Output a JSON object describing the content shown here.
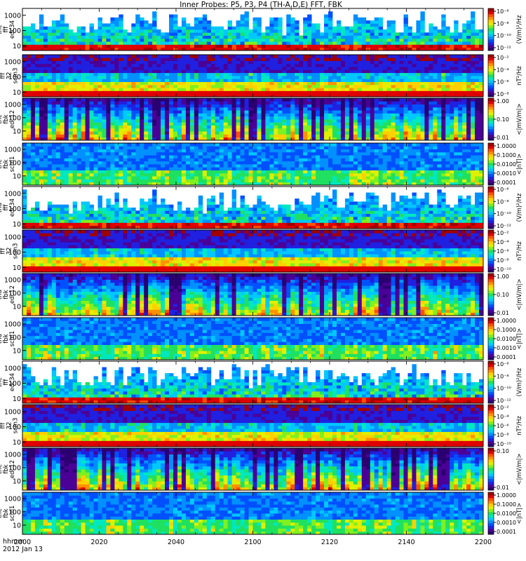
{
  "title": "Inner Probes: P5, P3, P4 (TH-A,D,E) FFT, FBK",
  "bottom": {
    "label_line1": "hhmm",
    "label_line2": "2012 Jan 13"
  },
  "colorbar_colors": [
    "#2a0070",
    "#4b0096",
    "#2020e0",
    "#0050ff",
    "#0090ff",
    "#00c8ff",
    "#00e8c0",
    "#20e060",
    "#80f020",
    "#e0f000",
    "#ffd000",
    "#ff9000",
    "#ff5000",
    "#e00000",
    "#a00000"
  ],
  "chart_data": {
    "type": "heatmap",
    "x": {
      "label": "hhmm",
      "date": "2012 Jan 13",
      "ticks": [
        "2000",
        "2020",
        "2040",
        "2100",
        "2120",
        "2140",
        "2200"
      ],
      "range_minutes": [
        0,
        120
      ]
    },
    "panels": [
      {
        "probe": "thc",
        "label": [
          "thc",
          "fff",
          "edc34"
        ],
        "yticks": [
          "10",
          "100",
          "1000"
        ],
        "unit": "(V/m)²/Hz",
        "cticks": [
          "10⁻¹²",
          "10⁻¹⁰",
          "10⁻⁸",
          "10⁻⁶"
        ],
        "kind": "E-FFT",
        "ylog": [
          5,
          2800
        ],
        "clog": [
          -12,
          -5
        ]
      },
      {
        "probe": "thc",
        "label": [
          "thc",
          "fff",
          "32",
          "scm3"
        ],
        "yticks": [
          "10",
          "100",
          "1000"
        ],
        "unit": "nT²/Hz",
        "cticks": [
          "10⁻⁸",
          "10⁻⁶",
          "10⁻⁴",
          "10⁻²"
        ],
        "kind": "B-FFT",
        "ylog": [
          5,
          2800
        ],
        "clog": [
          -9,
          -2
        ]
      },
      {
        "probe": "thc",
        "label": [
          "thc",
          "fbk",
          "edc12"
        ],
        "yticks": [
          "10",
          "100",
          "1000"
        ],
        "unit": "<|mV/m|>",
        "cticks": [
          "0.01",
          "0.10",
          "1.00"
        ],
        "kind": "E-FBK",
        "ylog": [
          2,
          3000
        ],
        "clog": [
          -2.5,
          0.2
        ]
      },
      {
        "probe": "thc",
        "label": [
          "thc",
          "fbk",
          "scm1"
        ],
        "yticks": [
          "10",
          "100",
          "1000"
        ],
        "unit": "<|nT|>",
        "cticks": [
          "0.0001",
          "0.0010",
          "0.0100",
          "0.1000",
          "1.0000"
        ],
        "kind": "B-FBK",
        "ylog": [
          2,
          3000
        ],
        "clog": [
          -4,
          0.3
        ]
      },
      {
        "probe": "thd",
        "label": [
          "thd",
          "fff",
          "edc34"
        ],
        "yticks": [
          "10",
          "100",
          "1000"
        ],
        "unit": "(V/m)²/Hz",
        "cticks": [
          "10⁻¹²",
          "10⁻¹⁰",
          "10⁻⁸",
          "10⁻⁶"
        ],
        "kind": "E-FFT",
        "ylog": [
          5,
          2800
        ],
        "clog": [
          -12,
          -5
        ]
      },
      {
        "probe": "thd",
        "label": [
          "thd",
          "fff",
          "32",
          "scm3"
        ],
        "yticks": [
          "10",
          "100",
          "1000"
        ],
        "unit": "nT²/Hz",
        "cticks": [
          "10⁻¹⁰",
          "10⁻⁸",
          "10⁻⁶",
          "10⁻⁴",
          "10⁻²"
        ],
        "kind": "B-FFT",
        "ylog": [
          5,
          2800
        ],
        "clog": [
          -10,
          -2
        ]
      },
      {
        "probe": "thd",
        "label": [
          "thd",
          "fbk",
          "edc12"
        ],
        "yticks": [
          "10",
          "100",
          "1000"
        ],
        "unit": "<|mV/m|>",
        "cticks": [
          "0.01",
          "0.10",
          "1.00"
        ],
        "kind": "E-FBK",
        "ylog": [
          2,
          3000
        ],
        "clog": [
          -2.5,
          0.2
        ]
      },
      {
        "probe": "thd",
        "label": [
          "thd",
          "fbk",
          "scm1"
        ],
        "yticks": [
          "10",
          "100",
          "1000"
        ],
        "unit": "<|nT|>",
        "cticks": [
          "0.0001",
          "0.0010",
          "0.0100",
          "0.1000",
          "1.0000"
        ],
        "kind": "B-FBK",
        "ylog": [
          2,
          3000
        ],
        "clog": [
          -4,
          0.3
        ]
      },
      {
        "probe": "the",
        "label": [
          "the",
          "fff",
          "edc34"
        ],
        "yticks": [
          "10",
          "100",
          "1000"
        ],
        "unit": "(V/m)²/Hz",
        "cticks": [
          "10⁻¹²",
          "10⁻¹⁰",
          "10⁻⁸",
          "10⁻⁶"
        ],
        "kind": "E-FFT",
        "ylog": [
          5,
          2800
        ],
        "clog": [
          -12,
          -5
        ]
      },
      {
        "probe": "the",
        "label": [
          "the",
          "fff",
          "32",
          "scm3"
        ],
        "yticks": [
          "10",
          "100",
          "1000"
        ],
        "unit": "nT²/Hz",
        "cticks": [
          "10⁻¹⁰",
          "10⁻⁸",
          "10⁻⁶",
          "10⁻⁴",
          "10⁻²"
        ],
        "kind": "B-FFT",
        "ylog": [
          5,
          2800
        ],
        "clog": [
          -10,
          -2
        ]
      },
      {
        "probe": "the",
        "label": [
          "the",
          "fbk",
          "edc12"
        ],
        "yticks": [
          "10",
          "100",
          "1000"
        ],
        "unit": "<|mV/m|>",
        "cticks": [
          "0.01",
          "0.10"
        ],
        "kind": "E-FBK",
        "ylog": [
          2,
          3000
        ],
        "clog": [
          -2.5,
          0.2
        ]
      },
      {
        "probe": "the",
        "label": [
          "the",
          "fbk",
          "scm1"
        ],
        "yticks": [
          "10",
          "100",
          "1000"
        ],
        "unit": "<|nT|>",
        "cticks": [
          "0.0001",
          "0.0010",
          "0.0100",
          "0.1000",
          "1.0000"
        ],
        "kind": "B-FBK",
        "ylog": [
          2,
          3000
        ],
        "clog": [
          -4,
          0.3
        ]
      }
    ]
  }
}
